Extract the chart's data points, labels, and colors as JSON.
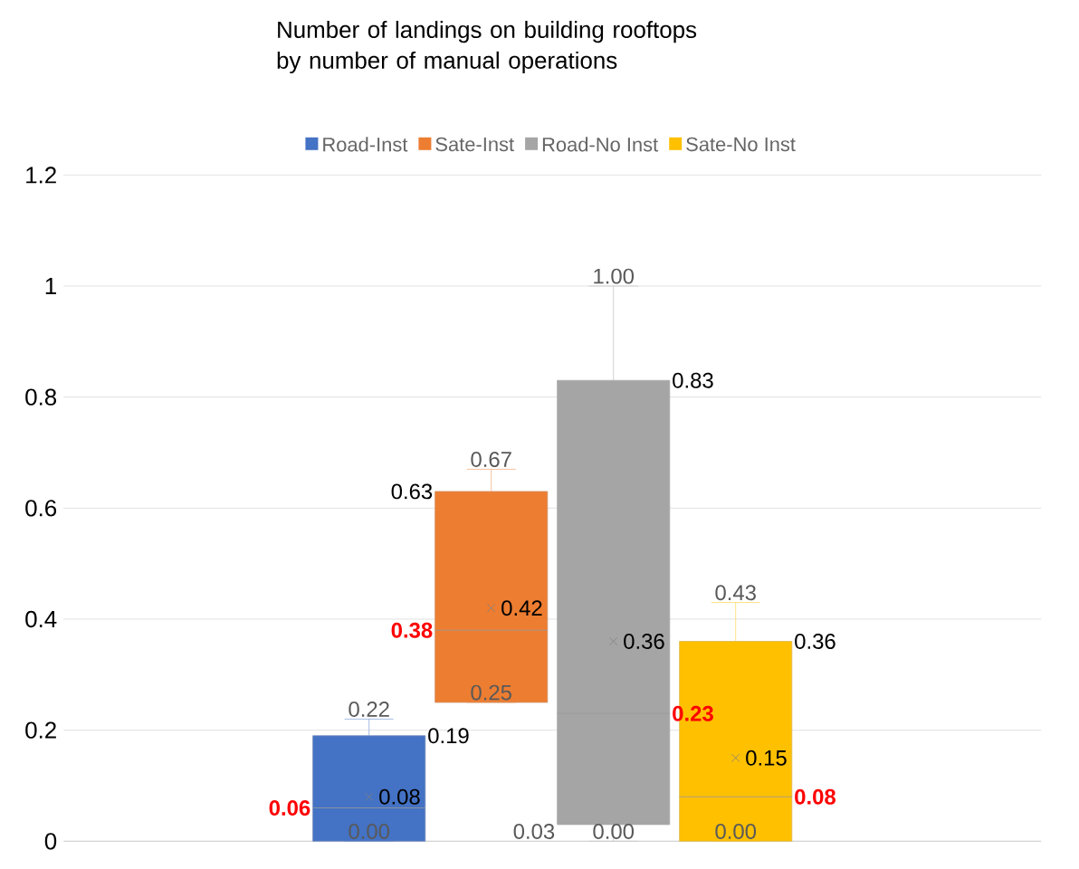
{
  "chart_data": {
    "type": "box",
    "title": "Number of landings on building rooftops\nby number of manual operations",
    "categories": [
      null
    ],
    "series": [
      {
        "name": "Road-Inst",
        "color": "#4472c4",
        "boxes": [
          {
            "low": 0,
            "q1": 0,
            "median": 0.06,
            "q3": 0.19,
            "high": 0.22,
            "mean": 0.08
          }
        ]
      },
      {
        "name": "Sate-Inst",
        "color": "#ed7d31",
        "boxes": [
          {
            "low": 0.25,
            "q1": 0.25,
            "median": 0.38,
            "q3": 0.63,
            "high": 0.67,
            "mean": 0.42
          }
        ]
      },
      {
        "name": "Road-No Inst",
        "color": "#a5a5a5",
        "boxes": [
          {
            "low": 0,
            "q1": 0.03,
            "median": 0.23,
            "q3": 0.83,
            "high": 1.0,
            "mean": 0.36
          }
        ]
      },
      {
        "name": "Sate-No Inst",
        "color": "#ffc000",
        "boxes": [
          {
            "low": 0,
            "q1": 0,
            "median": 0.08,
            "q3": 0.36,
            "high": 0.43,
            "mean": 0.15
          }
        ]
      }
    ],
    "annotations": [
      "0.22",
      "0.19",
      "0.06",
      "0.08",
      "0.00",
      "0.67",
      "0.63",
      "0.38",
      "0.42",
      "0.25",
      "1.00",
      "0.83",
      "0.23",
      "0.36",
      "0.03",
      "0.00",
      "0.43",
      "0.36",
      "0.08",
      "0.15",
      "0.00"
    ],
    "ylim": [
      0,
      1.2
    ],
    "yticks": [
      0,
      0.2,
      0.4,
      0.6,
      0.8,
      1,
      1.2
    ],
    "grid": "y",
    "legend": "top",
    "tick_labels": "y",
    "marker": "cross"
  }
}
